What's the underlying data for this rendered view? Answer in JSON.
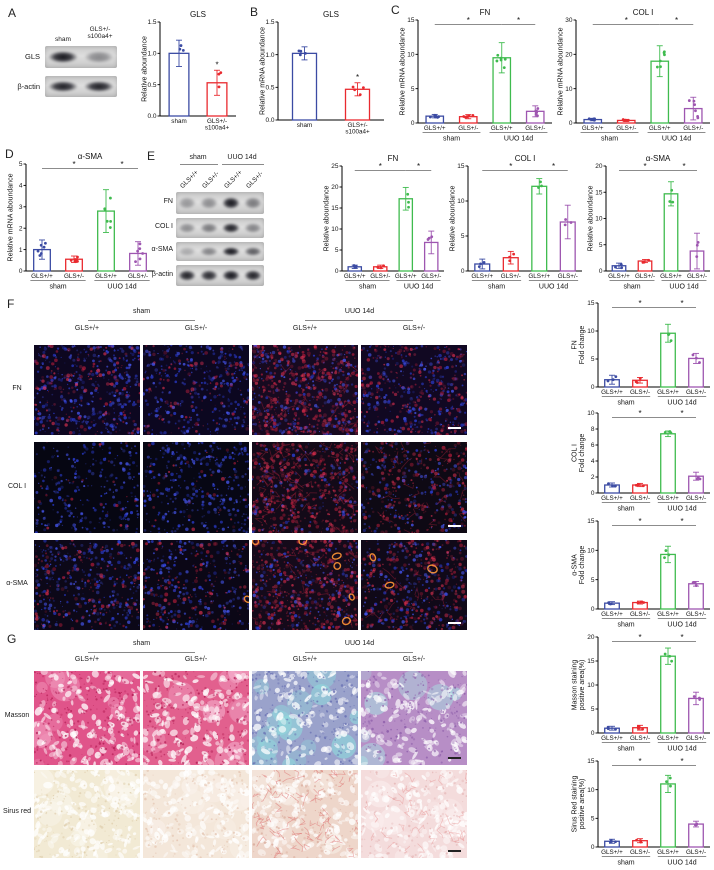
{
  "panels": {
    "a": "A",
    "b": "B",
    "c": "C",
    "d": "D",
    "e": "E",
    "f": "F",
    "g": "G"
  },
  "colors": {
    "blue": "#3b4ba3",
    "red": "#e92a2f",
    "green": "#3fbb4e",
    "purple": "#9e56b0",
    "sig_line": "#8c8c8c"
  },
  "panel_a": {
    "blot": {
      "lane_labels": [
        "sham",
        "GLS+/-\ns100a4+"
      ],
      "rows": [
        {
          "label": "GLS",
          "bands": [
            1.0,
            0.42
          ]
        },
        {
          "label": "β-actin",
          "bands": [
            0.95,
            0.95
          ]
        }
      ]
    }
  },
  "panel_e": {
    "blot": {
      "group_labels": [
        "sham",
        "UUO 14d"
      ],
      "lane_labels": [
        "GLS+/+",
        "GLS+/-",
        "GLS+/+",
        "GLS+/-"
      ],
      "rows": [
        {
          "label": "FN",
          "bands": [
            0.35,
            0.4,
            1.0,
            0.5
          ]
        },
        {
          "label": "COL I",
          "bands": [
            0.4,
            0.5,
            0.95,
            0.45
          ]
        },
        {
          "label": "α-SMA",
          "bands": [
            0.25,
            0.45,
            1.0,
            0.65
          ]
        },
        {
          "label": "β-actin",
          "bands": [
            0.95,
            0.9,
            1.0,
            0.95
          ]
        }
      ]
    }
  },
  "panel_f": {
    "group_labels": [
      "sham",
      "UUO 14d"
    ],
    "col_labels": [
      "GLS+/+",
      "GLS+/-",
      "GLS+/+",
      "GLS+/-"
    ],
    "scalebar_color": "#ffffff",
    "rows": [
      {
        "label": "FN",
        "type": "fluor",
        "cells": [
          {
            "base": "#0d0720",
            "blue": 380,
            "red": 150,
            "rings": 0,
            "streaks": 0
          },
          {
            "base": "#0c0720",
            "blue": 330,
            "red": 110,
            "rings": 0,
            "streaks": 0
          },
          {
            "base": "#170a20",
            "blue": 260,
            "red": 430,
            "rings": 0,
            "streaks": 20
          },
          {
            "base": "#110822",
            "blue": 260,
            "red": 240,
            "rings": 0,
            "streaks": 0
          }
        ]
      },
      {
        "label": "COL I",
        "type": "fluor",
        "cells": [
          {
            "base": "#060612",
            "blue": 260,
            "red": 25,
            "rings": 0,
            "streaks": 0
          },
          {
            "base": "#070714",
            "blue": 330,
            "red": 40,
            "rings": 0,
            "streaks": 0
          },
          {
            "base": "#130a18",
            "blue": 160,
            "red": 420,
            "rings": 0,
            "streaks": 50
          },
          {
            "base": "#0e0914",
            "blue": 200,
            "red": 230,
            "rings": 0,
            "streaks": 25
          }
        ]
      },
      {
        "label": "α-SMA",
        "type": "fluor",
        "cells": [
          {
            "base": "#0c0818",
            "blue": 320,
            "red": 150,
            "rings": 0,
            "streaks": 0
          },
          {
            "base": "#0b0716",
            "blue": 280,
            "red": 130,
            "rings": 1,
            "streaks": 0
          },
          {
            "base": "#150a1a",
            "blue": 220,
            "red": 420,
            "rings": 6,
            "streaks": 15
          },
          {
            "base": "#100918",
            "blue": 240,
            "red": 270,
            "rings": 3,
            "streaks": 10
          }
        ]
      }
    ]
  },
  "panel_g": {
    "group_labels": [
      "sham",
      "UUO 14d"
    ],
    "col_labels": [
      "GLS+/+",
      "GLS+/-",
      "GLS+/+",
      "GLS+/-"
    ],
    "scalebar_color": "#222222",
    "rows": [
      {
        "label": "Masson",
        "type": "histo",
        "cells": [
          {
            "base": "#e0548a",
            "lumenN": 150,
            "speckColor": "#b01850",
            "speckN": 240,
            "patchColor": "#f5a8c8",
            "patchN": 10,
            "streakColor": "",
            "streakN": 0
          },
          {
            "base": "#e2608e",
            "lumenN": 150,
            "speckColor": "#b01850",
            "speckN": 220,
            "patchColor": "#f5b0ce",
            "patchN": 10,
            "streakColor": "",
            "streakN": 0
          },
          {
            "base": "#9aa2cb",
            "lumenN": 130,
            "speckColor": "#636bb0",
            "speckN": 260,
            "patchColor": "#8fdede",
            "patchN": 16,
            "streakColor": "",
            "streakN": 0
          },
          {
            "base": "#b78ec6",
            "lumenN": 140,
            "speckColor": "#8a5aa8",
            "speckN": 240,
            "patchColor": "#a8e4e4",
            "patchN": 8,
            "streakColor": "",
            "streakN": 0
          }
        ]
      },
      {
        "label": "Sirus red",
        "type": "histo",
        "cells": [
          {
            "base": "#f2ead4",
            "lumenN": 160,
            "speckColor": "#ddcba8",
            "speckN": 180,
            "patchColor": "#fbf8f0",
            "patchN": 12,
            "streakColor": "",
            "streakN": 0
          },
          {
            "base": "#f4e7da",
            "lumenN": 160,
            "speckColor": "#e3c3ae",
            "speckN": 180,
            "patchColor": "#fbf4ee",
            "patchN": 12,
            "streakColor": "",
            "streakN": 0
          },
          {
            "base": "#eed6ca",
            "lumenN": 150,
            "speckColor": "#d8a898",
            "speckN": 160,
            "patchColor": "#f8efe8",
            "patchN": 10,
            "streakColor": "#dc6464",
            "streakN": 70
          },
          {
            "base": "#f4dcdc",
            "lumenN": 150,
            "speckColor": "#e4b4b4",
            "speckN": 160,
            "patchColor": "#fbf0f0",
            "patchN": 10,
            "streakColor": "#e89090",
            "streakN": 40
          }
        ]
      }
    ]
  },
  "chart_data": [
    {
      "id": "a-gls-protein",
      "type": "bar",
      "title": "GLS",
      "ylabel": "Relative aboundance",
      "categories": [
        "sham",
        "GLS+/-\ns100a4+"
      ],
      "values": [
        1.0,
        0.53
      ],
      "errors": [
        0.21,
        0.2
      ],
      "colors": [
        "#3b4ba3",
        "#e92a2f"
      ],
      "ylim": [
        0,
        1.5
      ],
      "yticks": [
        0,
        0.5,
        1,
        1.5
      ],
      "n_points": 3,
      "sig": {
        "star_bar": 1,
        "label": "*"
      }
    },
    {
      "id": "b-gls-mrna",
      "type": "bar",
      "title": "GLS",
      "ylabel": "Relative mRNA aboundance",
      "categories": [
        "sham",
        "GLS+/-\ns100a4+"
      ],
      "values": [
        1.02,
        0.47
      ],
      "errors": [
        0.1,
        0.1
      ],
      "colors": [
        "#3b4ba3",
        "#e92a2f"
      ],
      "ylim": [
        0,
        1.5
      ],
      "yticks": [
        0,
        0.5,
        1,
        1.5
      ],
      "n_points": 4,
      "sig": {
        "star_bar": 1,
        "label": "*"
      }
    },
    {
      "id": "c-fn",
      "type": "bar",
      "title": "FN",
      "ylabel": "Relative mRNA aboundance",
      "categories": [
        "GLS+/+",
        "GLS+/-",
        "GLS+/+",
        "GLS+/-"
      ],
      "groups": [
        {
          "label": "sham",
          "cols": [
            0,
            1
          ]
        },
        {
          "label": "UUO 14d",
          "cols": [
            2,
            3
          ]
        }
      ],
      "values": [
        1.0,
        0.92,
        9.5,
        1.7
      ],
      "errors": [
        0.25,
        0.3,
        2.2,
        0.8
      ],
      "colors": [
        "#3b4ba3",
        "#e92a2f",
        "#3fbb4e",
        "#9e56b0"
      ],
      "ylim": [
        0,
        15
      ],
      "yticks": [
        0,
        5,
        10,
        15
      ],
      "n_points": 6,
      "sig": {
        "pairs": [
          [
            0,
            2
          ],
          [
            2,
            3
          ]
        ],
        "label": "*"
      }
    },
    {
      "id": "c-col1",
      "type": "bar",
      "title": "COL I",
      "ylabel": "Relative mRNA aboundance",
      "categories": [
        "GLS+/+",
        "GLS+/-",
        "GLS+/+",
        "GLS+/-"
      ],
      "groups": [
        {
          "label": "sham",
          "cols": [
            0,
            1
          ]
        },
        {
          "label": "UUO 14d",
          "cols": [
            2,
            3
          ]
        }
      ],
      "values": [
        1.0,
        0.75,
        18,
        4.2
      ],
      "errors": [
        0.35,
        0.3,
        4.5,
        3.3
      ],
      "colors": [
        "#3b4ba3",
        "#e92a2f",
        "#3fbb4e",
        "#9e56b0"
      ],
      "ylim": [
        0,
        30
      ],
      "yticks": [
        0,
        10,
        20,
        30
      ],
      "n_points": 6,
      "sig": {
        "pairs": [
          [
            0,
            2
          ],
          [
            2,
            3
          ]
        ],
        "label": "*"
      }
    },
    {
      "id": "d-asma",
      "type": "bar",
      "title": "α-SMA",
      "ylabel": "Relative mRNA aboundance",
      "categories": [
        "GLS+/+",
        "GLS+/-",
        "GLS+/+",
        "GLS+/-"
      ],
      "groups": [
        {
          "label": "sham",
          "cols": [
            0,
            1
          ]
        },
        {
          "label": "UUO 14d",
          "cols": [
            2,
            3
          ]
        }
      ],
      "values": [
        1.0,
        0.55,
        2.8,
        0.82
      ],
      "errors": [
        0.45,
        0.15,
        1.0,
        0.55
      ],
      "colors": [
        "#3b4ba3",
        "#e92a2f",
        "#3fbb4e",
        "#9e56b0"
      ],
      "ylim": [
        0,
        5
      ],
      "yticks": [
        0,
        1,
        2,
        3,
        4,
        5
      ],
      "n_points": 6,
      "sig": {
        "pairs": [
          [
            0,
            2
          ],
          [
            2,
            3
          ]
        ],
        "label": "*"
      }
    },
    {
      "id": "e-fn",
      "type": "bar",
      "title": "FN",
      "ylabel": "Relative aboundance",
      "categories": [
        "GLS+/+",
        "GLS+/-",
        "GLS+/+",
        "GLS+/-"
      ],
      "groups": [
        {
          "label": "sham",
          "cols": [
            0,
            1
          ]
        },
        {
          "label": "UUO 14d",
          "cols": [
            2,
            3
          ]
        }
      ],
      "values": [
        1.0,
        1.0,
        17.2,
        6.8
      ],
      "errors": [
        0.4,
        0.4,
        2.7,
        2.7
      ],
      "colors": [
        "#3b4ba3",
        "#e92a2f",
        "#3fbb4e",
        "#9e56b0"
      ],
      "ylim": [
        0,
        25
      ],
      "yticks": [
        0,
        5,
        10,
        15,
        20,
        25
      ],
      "n_points": 3,
      "sig": {
        "pairs": [
          [
            0,
            2
          ],
          [
            2,
            3
          ]
        ],
        "label": "*"
      }
    },
    {
      "id": "e-col1",
      "type": "bar",
      "title": "COL I",
      "ylabel": "Relative aboundance",
      "categories": [
        "GLS+/+",
        "GLS+/-",
        "GLS+/+",
        "GLS+/-"
      ],
      "groups": [
        {
          "label": "sham",
          "cols": [
            0,
            1
          ]
        },
        {
          "label": "UUO 14d",
          "cols": [
            2,
            3
          ]
        }
      ],
      "values": [
        1.0,
        1.9,
        12.1,
        7.0
      ],
      "errors": [
        0.7,
        0.9,
        1.1,
        2.4
      ],
      "colors": [
        "#3b4ba3",
        "#e92a2f",
        "#3fbb4e",
        "#9e56b0"
      ],
      "ylim": [
        0,
        15
      ],
      "yticks": [
        0,
        5,
        10,
        15
      ],
      "n_points": 3,
      "sig": {
        "pairs": [
          [
            0,
            2
          ],
          [
            2,
            3
          ]
        ],
        "label": "*"
      }
    },
    {
      "id": "e-asma",
      "type": "bar",
      "title": "α-SMA",
      "ylabel": "Relative aboundance",
      "categories": [
        "GLS+/+",
        "GLS+/-",
        "GLS+/+",
        "GLS+/-"
      ],
      "groups": [
        {
          "label": "sham",
          "cols": [
            0,
            1
          ]
        },
        {
          "label": "UUO 14d",
          "cols": [
            2,
            3
          ]
        }
      ],
      "values": [
        1.0,
        1.9,
        14.7,
        3.8
      ],
      "errors": [
        0.5,
        0.3,
        2.3,
        3.4
      ],
      "colors": [
        "#3b4ba3",
        "#e92a2f",
        "#3fbb4e",
        "#9e56b0"
      ],
      "ylim": [
        0,
        20
      ],
      "yticks": [
        0,
        5,
        10,
        15,
        20
      ],
      "n_points": 3,
      "sig": {
        "pairs": [
          [
            0,
            2
          ],
          [
            2,
            3
          ]
        ],
        "label": "*"
      }
    },
    {
      "id": "f-fn",
      "type": "bar",
      "title": "",
      "ylabel": [
        "FN",
        "Fold change"
      ],
      "categories": [
        "GLS+/+",
        "GLS+/-",
        "GLS+/+",
        "GLS+/-"
      ],
      "groups": [
        {
          "label": "sham",
          "cols": [
            0,
            1
          ]
        },
        {
          "label": "UUO 14d",
          "cols": [
            2,
            3
          ]
        }
      ],
      "values": [
        1.3,
        1.2,
        9.6,
        5.1
      ],
      "errors": [
        0.8,
        0.5,
        1.6,
        0.9
      ],
      "colors": [
        "#3b4ba3",
        "#e92a2f",
        "#3fbb4e",
        "#9e56b0"
      ],
      "ylim": [
        0,
        15
      ],
      "yticks": [
        0,
        5,
        10,
        15
      ],
      "n_points": 3,
      "sig": {
        "pairs": [
          [
            0,
            2
          ],
          [
            2,
            3
          ]
        ],
        "label": "*"
      }
    },
    {
      "id": "f-col1",
      "type": "bar",
      "title": "",
      "ylabel": [
        "COL I",
        "Fold change"
      ],
      "categories": [
        "GLS+/+",
        "GLS+/-",
        "GLS+/+",
        "GLS+/-"
      ],
      "groups": [
        {
          "label": "sham",
          "cols": [
            0,
            1
          ]
        },
        {
          "label": "UUO 14d",
          "cols": [
            2,
            3
          ]
        }
      ],
      "values": [
        1.0,
        1.0,
        7.4,
        2.1
      ],
      "errors": [
        0.25,
        0.2,
        0.35,
        0.5
      ],
      "colors": [
        "#3b4ba3",
        "#e92a2f",
        "#3fbb4e",
        "#9e56b0"
      ],
      "ylim": [
        0,
        10
      ],
      "yticks": [
        0,
        2,
        4,
        6,
        8,
        10
      ],
      "n_points": 3,
      "sig": {
        "pairs": [
          [
            0,
            2
          ],
          [
            2,
            3
          ]
        ],
        "label": "*"
      }
    },
    {
      "id": "f-asma",
      "type": "bar",
      "title": "",
      "ylabel": [
        "α-SMA",
        "Fold change"
      ],
      "categories": [
        "GLS+/+",
        "GLS+/-",
        "GLS+/+",
        "GLS+/-"
      ],
      "groups": [
        {
          "label": "sham",
          "cols": [
            0,
            1
          ]
        },
        {
          "label": "UUO 14d",
          "cols": [
            2,
            3
          ]
        }
      ],
      "values": [
        1.0,
        1.1,
        9.3,
        4.3
      ],
      "errors": [
        0.25,
        0.25,
        1.4,
        0.4
      ],
      "colors": [
        "#3b4ba3",
        "#e92a2f",
        "#3fbb4e",
        "#9e56b0"
      ],
      "ylim": [
        0,
        15
      ],
      "yticks": [
        0,
        5,
        10,
        15
      ],
      "n_points": 3,
      "sig": {
        "pairs": [
          [
            0,
            2
          ],
          [
            2,
            3
          ]
        ],
        "label": "*"
      }
    },
    {
      "id": "g-masson",
      "type": "bar",
      "title": "",
      "ylabel": [
        "Masson staining",
        "positive area(%)"
      ],
      "categories": [
        "GLS+/+",
        "GLS+/-",
        "GLS+/+",
        "GLS+/-"
      ],
      "groups": [
        {
          "label": "sham",
          "cols": [
            0,
            1
          ]
        },
        {
          "label": "UUO 14d",
          "cols": [
            2,
            3
          ]
        }
      ],
      "values": [
        1.0,
        1.1,
        16.0,
        7.2
      ],
      "errors": [
        0.4,
        0.5,
        1.7,
        1.3
      ],
      "colors": [
        "#3b4ba3",
        "#e92a2f",
        "#3fbb4e",
        "#9e56b0"
      ],
      "ylim": [
        0,
        20
      ],
      "yticks": [
        0,
        5,
        10,
        15,
        20
      ],
      "n_points": 3,
      "sig": {
        "pairs": [
          [
            0,
            2
          ],
          [
            2,
            3
          ]
        ],
        "label": "*"
      }
    },
    {
      "id": "g-sirus",
      "type": "bar",
      "title": "",
      "ylabel": [
        "Sirus Red staining",
        "positive area(%)"
      ],
      "categories": [
        "GLS+/+",
        "GLS+/-",
        "GLS+/+",
        "GLS+/-"
      ],
      "groups": [
        {
          "label": "sham",
          "cols": [
            0,
            1
          ]
        },
        {
          "label": "UUO 14d",
          "cols": [
            2,
            3
          ]
        }
      ],
      "values": [
        1.0,
        1.1,
        11.0,
        4.0
      ],
      "errors": [
        0.35,
        0.35,
        1.5,
        0.5
      ],
      "colors": [
        "#3b4ba3",
        "#e92a2f",
        "#3fbb4e",
        "#9e56b0"
      ],
      "ylim": [
        0,
        15
      ],
      "yticks": [
        0,
        5,
        10,
        15
      ],
      "n_points": 3,
      "sig": {
        "pairs": [
          [
            0,
            2
          ],
          [
            2,
            3
          ]
        ],
        "label": "*"
      }
    }
  ]
}
